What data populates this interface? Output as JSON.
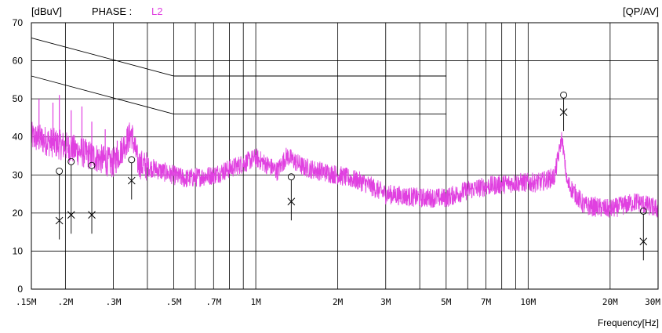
{
  "header": {
    "unit": "[dBuV]",
    "phase_label": "PHASE :",
    "phase_value": "L2",
    "detector": "[QP/AV]"
  },
  "colors": {
    "trace": "#e040e0",
    "grid": "#000000",
    "limit": "#000000",
    "marker": "#000000"
  },
  "chart_data": {
    "type": "line",
    "title": "",
    "xlabel": "Frequency[Hz]",
    "ylabel": "[dBuV]",
    "x_scale": "log",
    "xlim_mhz": [
      0.15,
      30
    ],
    "ylim": [
      0,
      70
    ],
    "grid": true,
    "y_ticks": [
      0,
      10,
      20,
      30,
      40,
      50,
      60,
      70
    ],
    "x_ticks": [
      {
        "label": ".15M",
        "mhz": 0.15
      },
      {
        "label": ".2M",
        "mhz": 0.2
      },
      {
        "label": ".3M",
        "mhz": 0.3
      },
      {
        "label": ".5M",
        "mhz": 0.5
      },
      {
        "label": ".7M",
        "mhz": 0.7
      },
      {
        "label": "1M",
        "mhz": 1
      },
      {
        "label": "2M",
        "mhz": 2
      },
      {
        "label": "3M",
        "mhz": 3
      },
      {
        "label": "5M",
        "mhz": 5
      },
      {
        "label": "7M",
        "mhz": 7
      },
      {
        "label": "10M",
        "mhz": 10
      },
      {
        "label": "20M",
        "mhz": 20
      },
      {
        "label": "30M",
        "mhz": 30
      }
    ],
    "minor_gridlines_mhz": [
      0.4,
      0.6,
      0.8,
      0.9,
      4,
      6,
      8,
      9
    ],
    "limit_lines": [
      {
        "name": "QP",
        "points": [
          [
            0.15,
            66
          ],
          [
            0.5,
            56
          ],
          [
            5,
            56
          ]
        ]
      },
      {
        "name": "AV",
        "points": [
          [
            0.15,
            56
          ],
          [
            0.5,
            46
          ],
          [
            5,
            46
          ]
        ]
      }
    ],
    "trace_envelope": [
      [
        0.15,
        40
      ],
      [
        0.17,
        39
      ],
      [
        0.2,
        37.5
      ],
      [
        0.25,
        35
      ],
      [
        0.3,
        33
      ],
      [
        0.33,
        38
      ],
      [
        0.35,
        41
      ],
      [
        0.37,
        33
      ],
      [
        0.45,
        31
      ],
      [
        0.55,
        29
      ],
      [
        0.7,
        30
      ],
      [
        0.9,
        33
      ],
      [
        1.0,
        34.5
      ],
      [
        1.2,
        31
      ],
      [
        1.3,
        35
      ],
      [
        1.5,
        32
      ],
      [
        2.0,
        30
      ],
      [
        2.5,
        28
      ],
      [
        3.0,
        25
      ],
      [
        4.0,
        24
      ],
      [
        5.0,
        24
      ],
      [
        6.0,
        26
      ],
      [
        7.0,
        27
      ],
      [
        9.0,
        28
      ],
      [
        11.0,
        28
      ],
      [
        12.5,
        29.5
      ],
      [
        13.3,
        40
      ],
      [
        13.9,
        28
      ],
      [
        16.0,
        22
      ],
      [
        20.0,
        21
      ],
      [
        25.0,
        23
      ],
      [
        30.0,
        21
      ]
    ],
    "trace_spikes": [
      [
        0.16,
        50
      ],
      [
        0.18,
        49
      ],
      [
        0.19,
        51
      ],
      [
        0.21,
        47
      ],
      [
        0.23,
        48
      ],
      [
        0.25,
        44
      ],
      [
        0.28,
        42
      ],
      [
        0.31,
        39
      ]
    ],
    "markers": [
      {
        "mhz": 0.19,
        "qp": 31,
        "av": 18
      },
      {
        "mhz": 0.21,
        "qp": 33.5,
        "av": 19.5
      },
      {
        "mhz": 0.25,
        "qp": 32.5,
        "av": 19.5
      },
      {
        "mhz": 0.35,
        "qp": 34,
        "av": 28.5
      },
      {
        "mhz": 1.35,
        "qp": 29.5,
        "av": 23
      },
      {
        "mhz": 13.5,
        "qp": 51,
        "av": 46.5
      },
      {
        "mhz": 26.5,
        "qp": 20.5,
        "av": 12.5
      }
    ]
  }
}
